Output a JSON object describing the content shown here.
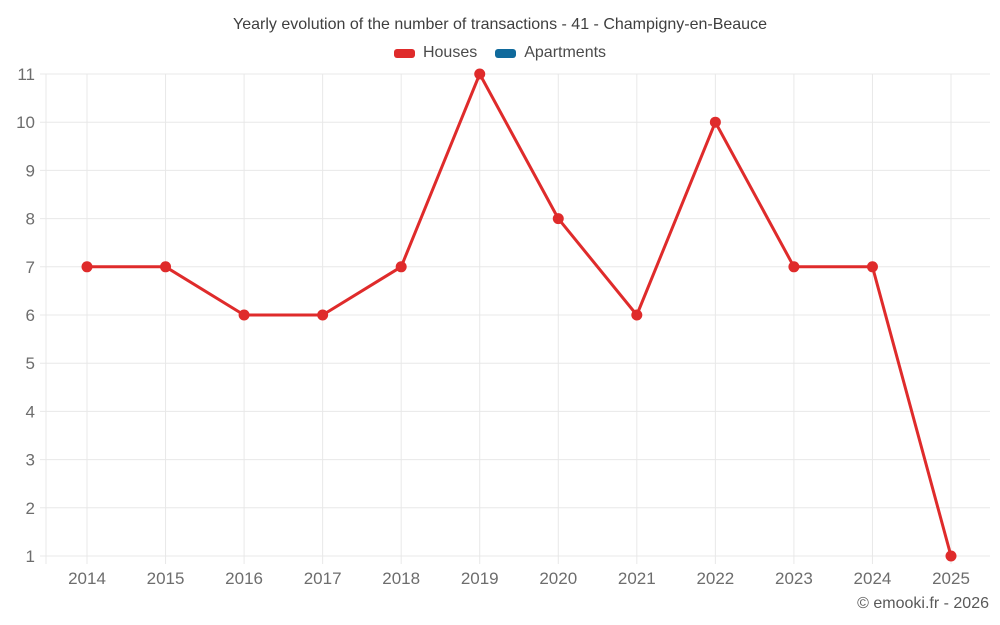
{
  "header": {
    "title": "Yearly evolution of the number of transactions - 41 - Champigny-en-Beauce"
  },
  "legend": {
    "items": [
      {
        "label": "Houses",
        "color": "#df2b2b"
      },
      {
        "label": "Apartments",
        "color": "#106a9c"
      }
    ]
  },
  "footer": {
    "copyright": "© emooki.fr - 2026"
  },
  "colors": {
    "grid": "#e8e8e8",
    "axis_text": "#6d6d6d",
    "title_text": "#3f3f3f",
    "houses_red": "#df2b2b",
    "apartments_blue": "#106a9c"
  },
  "chart_data": {
    "type": "line",
    "title": "Yearly evolution of the number of transactions - 41 - Champigny-en-Beauce",
    "x": [
      2014,
      2015,
      2016,
      2017,
      2018,
      2019,
      2020,
      2021,
      2022,
      2023,
      2024,
      2025
    ],
    "series": [
      {
        "name": "Houses",
        "color": "#df2b2b",
        "values": [
          7,
          7,
          6,
          6,
          7,
          11,
          8,
          6,
          10,
          7,
          7,
          1
        ]
      },
      {
        "name": "Apartments",
        "color": "#106a9c",
        "values": []
      }
    ],
    "xlabel": "",
    "ylabel": "",
    "ylim": [
      1,
      11
    ],
    "yticks": [
      1,
      2,
      3,
      4,
      5,
      6,
      7,
      8,
      9,
      10,
      11
    ],
    "grid": true,
    "legend_position": "top",
    "marker": "circle"
  }
}
